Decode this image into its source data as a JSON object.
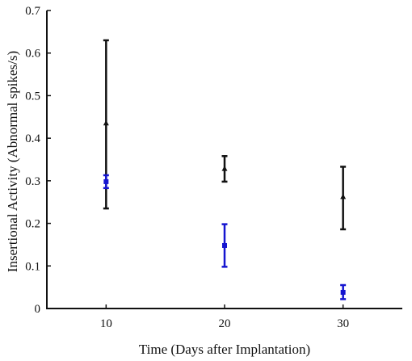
{
  "chart_data": {
    "type": "scatter",
    "title": "",
    "xlabel": "Time (Days after Implantation)",
    "ylabel": "Insertional Activity (Abnormal spikes/s)",
    "xlim": [
      5,
      35
    ],
    "ylim": [
      0,
      0.7
    ],
    "xticks": [
      10,
      20,
      30
    ],
    "xtick_labels": [
      "10",
      "20",
      "30"
    ],
    "yticks": [
      0,
      0.1,
      0.2,
      0.3,
      0.4,
      0.5,
      0.6,
      0.7
    ],
    "ytick_labels": [
      "0",
      "0.1",
      "0.2",
      "0.3",
      "0.4",
      "0.5",
      "0.6",
      "0.7"
    ],
    "grid": false,
    "legend": "none",
    "series": [
      {
        "color": "#111111",
        "marker": "triangle",
        "points": [
          {
            "x": 10,
            "y": 0.435,
            "low": 0.235,
            "high": 0.63
          },
          {
            "x": 20,
            "y": 0.328,
            "low": 0.298,
            "high": 0.358
          },
          {
            "x": 30,
            "y": 0.262,
            "low": 0.186,
            "high": 0.333
          }
        ]
      },
      {
        "color": "#1515d0",
        "marker": "square",
        "points": [
          {
            "x": 10,
            "y": 0.298,
            "low": 0.283,
            "high": 0.313
          },
          {
            "x": 20,
            "y": 0.148,
            "low": 0.098,
            "high": 0.198
          },
          {
            "x": 30,
            "y": 0.038,
            "low": 0.022,
            "high": 0.055
          }
        ]
      }
    ]
  }
}
